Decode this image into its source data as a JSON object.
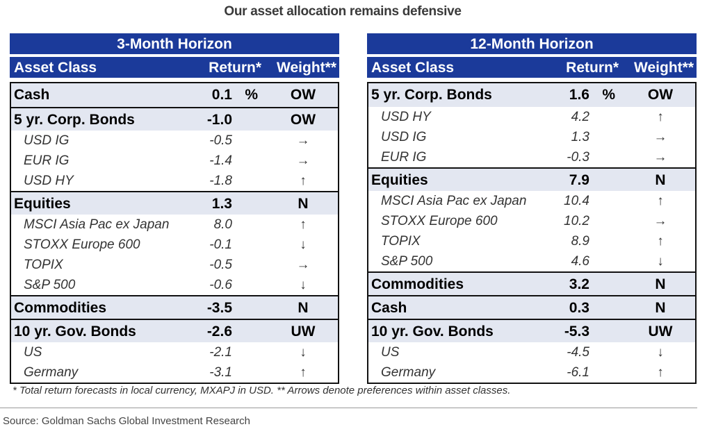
{
  "title": "Our asset allocation remains defensive",
  "headers": {
    "asset_class": "Asset Class",
    "return": "Return*",
    "weight": "Weight**"
  },
  "tables": [
    {
      "horizon": "3-Month Horizon",
      "rows": [
        {
          "type": "grp",
          "name": "Cash",
          "ret": "0.1",
          "pct": "%",
          "wt": "OW"
        },
        {
          "type": "grp",
          "name": "5 yr. Corp. Bonds",
          "ret": "-1.0",
          "wt": "OW"
        },
        {
          "type": "sub",
          "name": "USD IG",
          "ret": "-0.5",
          "wt": "→"
        },
        {
          "type": "sub",
          "name": "EUR IG",
          "ret": "-1.4",
          "wt": "→"
        },
        {
          "type": "sub",
          "name": "USD HY",
          "ret": "-1.8",
          "wt": "↑"
        },
        {
          "type": "grp",
          "name": "Equities",
          "ret": "1.3",
          "wt": "N"
        },
        {
          "type": "sub",
          "name": "MSCI Asia Pac ex Japan",
          "ret": "8.0",
          "wt": "↑"
        },
        {
          "type": "sub",
          "name": "STOXX Europe 600",
          "ret": "-0.1",
          "wt": "↓"
        },
        {
          "type": "sub",
          "name": "TOPIX",
          "ret": "-0.5",
          "wt": "→"
        },
        {
          "type": "sub",
          "name": "S&P 500",
          "ret": "-0.6",
          "wt": "↓"
        },
        {
          "type": "grp",
          "name": "Commodities",
          "ret": "-3.5",
          "wt": "N"
        },
        {
          "type": "grp",
          "name": "10 yr. Gov. Bonds",
          "ret": "-2.6",
          "wt": "UW"
        },
        {
          "type": "sub",
          "name": "US",
          "ret": "-2.1",
          "wt": "↓"
        },
        {
          "type": "sub",
          "name": "Germany",
          "ret": "-3.1",
          "wt": "↑"
        }
      ]
    },
    {
      "horizon": "12-Month Horizon",
      "rows": [
        {
          "type": "grp",
          "name": "5 yr. Corp. Bonds",
          "ret": "1.6",
          "pct": "%",
          "wt": "OW"
        },
        {
          "type": "sub",
          "name": "USD HY",
          "ret": "4.2",
          "wt": "↑"
        },
        {
          "type": "sub",
          "name": "USD IG",
          "ret": "1.3",
          "wt": "→"
        },
        {
          "type": "sub",
          "name": "EUR IG",
          "ret": "-0.3",
          "wt": "→"
        },
        {
          "type": "grp",
          "name": "Equities",
          "ret": "7.9",
          "wt": "N"
        },
        {
          "type": "sub",
          "name": "MSCI Asia Pac ex Japan",
          "ret": "10.4",
          "wt": "↑"
        },
        {
          "type": "sub",
          "name": "STOXX Europe 600",
          "ret": "10.2",
          "wt": "→"
        },
        {
          "type": "sub",
          "name": "TOPIX",
          "ret": "8.9",
          "wt": "↑"
        },
        {
          "type": "sub",
          "name": "S&P 500",
          "ret": "4.6",
          "wt": "↓"
        },
        {
          "type": "grp",
          "name": "Commodities",
          "ret": "3.2",
          "wt": "N"
        },
        {
          "type": "grp",
          "name": "Cash",
          "ret": "0.3",
          "wt": "N"
        },
        {
          "type": "grp",
          "name": "10 yr. Gov. Bonds",
          "ret": "-5.3",
          "wt": "UW"
        },
        {
          "type": "sub",
          "name": "US",
          "ret": "-4.5",
          "wt": "↓"
        },
        {
          "type": "sub",
          "name": "Germany",
          "ret": "-6.1",
          "wt": "↑"
        }
      ]
    }
  ],
  "footnote": "* Total return forecasts in local currency, MXAPJ in USD. ** Arrows denote preferences within asset classes.",
  "source": "Source: Goldman Sachs Global Investment Research"
}
